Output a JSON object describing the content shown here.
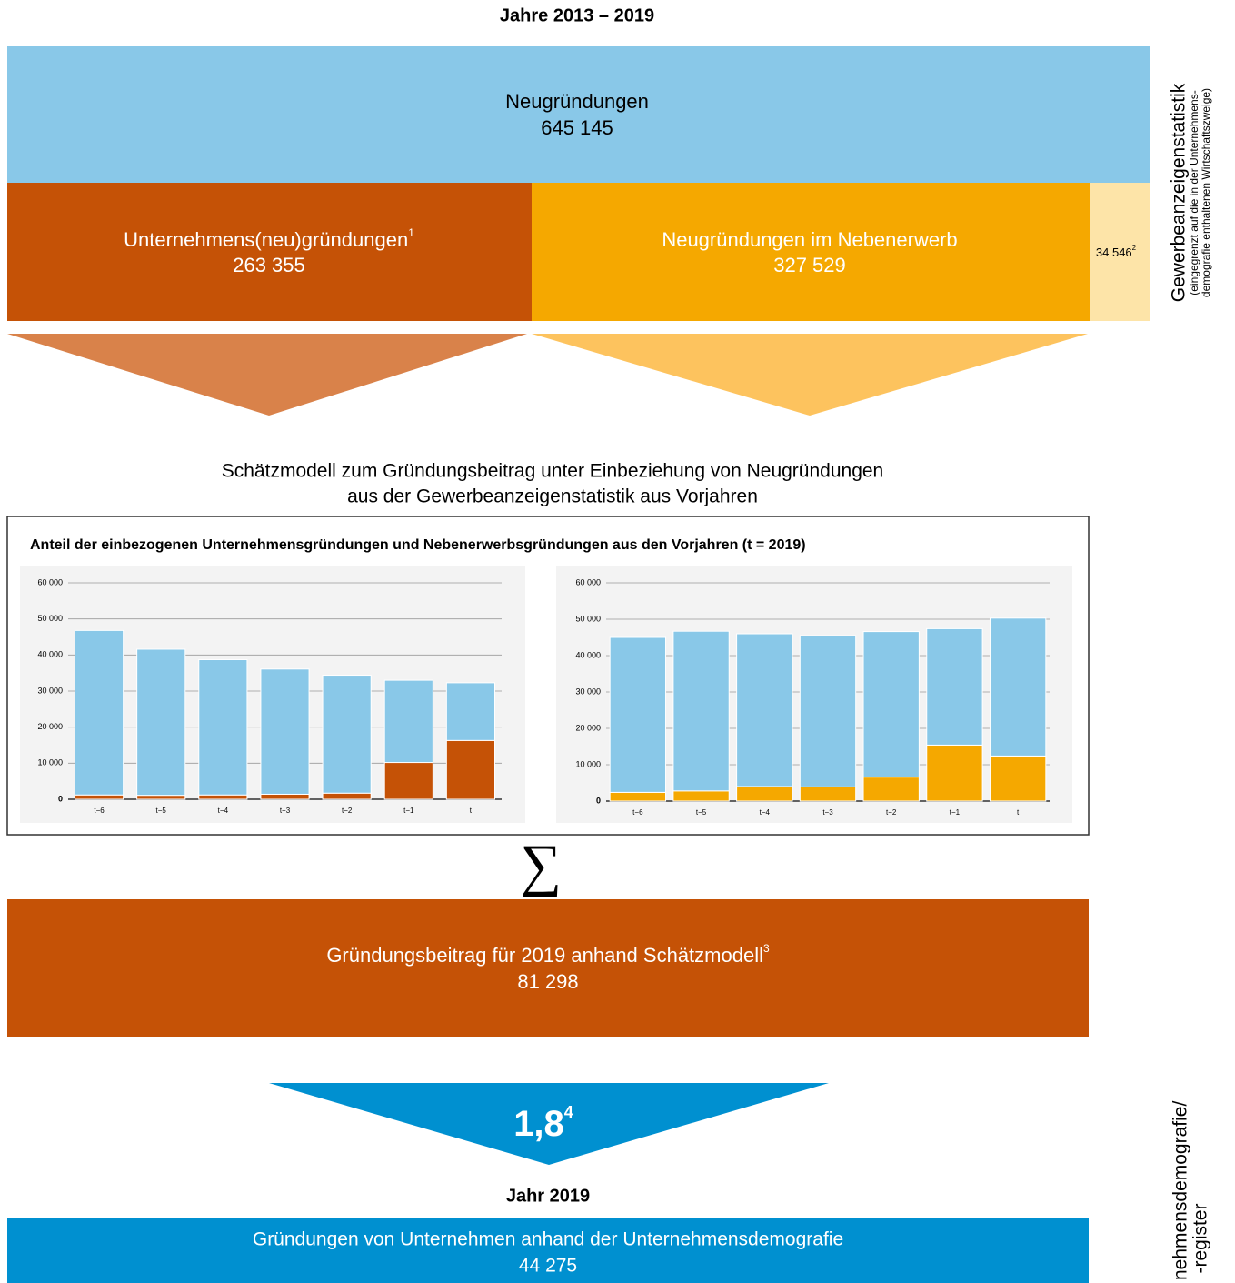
{
  "header": {
    "title": "Jahre 2013 – 2019"
  },
  "top": {
    "label": "Neugründungen",
    "value": "645 145"
  },
  "split": [
    {
      "label": "Unternehmens(neu)gründungen",
      "sup": "1",
      "value": "263 355"
    },
    {
      "label": "Neugründungen im Nebenerwerb",
      "value": "327 529"
    },
    {
      "value": "34 546",
      "sup": "2"
    }
  ],
  "side_top": {
    "title": "Gewerbeanzeigenstatistik",
    "note": [
      "(eingegrenzt auf die in der Unternehmens-",
      "demografie enthaltenen Wirtschaftszweige)"
    ]
  },
  "model": {
    "lines": [
      "Schätzmodell zum Gründungsbeitrag unter Einbeziehung von Neugründungen",
      "aus der Gewerbeanzeigenstatistik aus Vorjahren"
    ]
  },
  "charts_box": {
    "title": "Anteil der einbezogenen Unternehmensgründungen und Nebenerwerbsgründungen aus den Vorjahren (t = 2019)"
  },
  "chart_data": [
    {
      "type": "bar",
      "stacked": true,
      "categories": [
        "t−6",
        "t−5",
        "t−4",
        "t−3",
        "t−2",
        "t−1",
        "t"
      ],
      "series": [
        {
          "color": "#c55206",
          "values": [
            1200,
            1100,
            1200,
            1400,
            1700,
            10200,
            16300
          ]
        },
        {
          "color": "#89c8e8",
          "values": [
            45600,
            40500,
            37500,
            34700,
            32700,
            22800,
            16000
          ]
        }
      ],
      "ylim": [
        0,
        60000
      ],
      "yticks": [
        0,
        {
          "value": 10000,
          "label": "10 000"
        },
        {
          "value": 20000,
          "label": "20 000"
        },
        {
          "value": 30000,
          "label": "30 000"
        },
        {
          "value": 40000,
          "label": "40 000"
        },
        {
          "value": 50000,
          "label": "50 000"
        },
        {
          "value": 60000,
          "label": "60 000"
        }
      ],
      "grid": true
    },
    {
      "type": "bar",
      "stacked": true,
      "categories": [
        "t−6",
        "t−5",
        "t−4",
        "t−3",
        "t−2",
        "t−1",
        "t"
      ],
      "series": [
        {
          "color": "#f5a800",
          "values": [
            2400,
            2800,
            4000,
            3900,
            6600,
            15400,
            12400
          ]
        },
        {
          "color": "#89c8e8",
          "values": [
            42600,
            43900,
            42000,
            41600,
            40000,
            32000,
            37900
          ]
        }
      ],
      "ylim": [
        0,
        60000
      ],
      "yticks": [
        0,
        {
          "value": 10000,
          "label": "10 000"
        },
        {
          "value": 20000,
          "label": "20 000"
        },
        {
          "value": 30000,
          "label": "30 000"
        },
        {
          "value": 40000,
          "label": "40 000"
        },
        {
          "value": 50000,
          "label": "50 000"
        },
        {
          "value": 60000,
          "label": "60 000"
        }
      ],
      "grid": true
    }
  ],
  "sum_symbol": "∑",
  "result": {
    "label": "Gründungsbeitrag für 2019 anhand Schätzmodell",
    "sup": "3",
    "value": "81 298"
  },
  "factor": {
    "value": "1,8",
    "sup": "4"
  },
  "year": "Jahr 2019",
  "bottom": {
    "label": "Gründungen von Unternehmen anhand der Unternehmensdemografie",
    "value": "44 275"
  },
  "side_bottom": [
    "nehmensdemografie/",
    "-register"
  ]
}
